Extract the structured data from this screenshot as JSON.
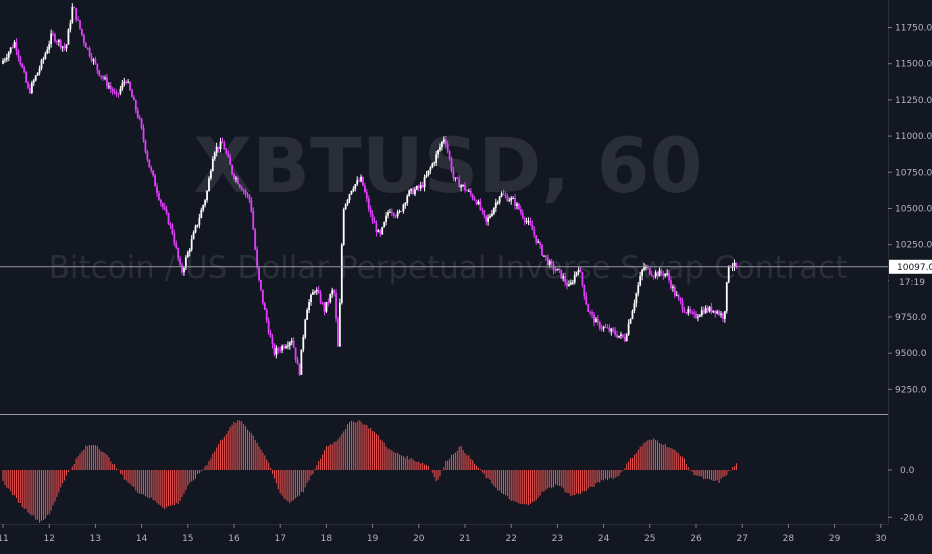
{
  "watermark": {
    "symbol": "XBTUSD, 60",
    "description": "Bitcoin / US Dollar Perpetual Inverse Swap Contract"
  },
  "price_tag": {
    "value": "10097.0",
    "countdown": "17:19",
    "bg_color": "#ffffff",
    "line_color": "#9598a1"
  },
  "colors": {
    "background": "#131722",
    "candle_up": "#ffffff",
    "candle_down": "#e040fb",
    "histogram": "#ef5350",
    "axis_text": "#b2b5be",
    "separator": "#9598a1"
  },
  "chart_data": [
    {
      "type": "candlestick",
      "pane": "price",
      "symbol": "XBTUSD",
      "interval": "60",
      "x_axis": {
        "unit": "day",
        "range": [
          11,
          30
        ],
        "tick_labels": [
          "11",
          "12",
          "13",
          "14",
          "15",
          "16",
          "17",
          "18",
          "19",
          "20",
          "21",
          "22",
          "23",
          "24",
          "25",
          "26",
          "27",
          "28",
          "29",
          "30"
        ]
      },
      "y_axis": {
        "range": [
          9080,
          11940
        ],
        "position": "right",
        "tick_labels": [
          "9250.0",
          "9500.0",
          "9750.0",
          "10000.0",
          "10250.0",
          "10500.0",
          "10750.0",
          "11000.0",
          "11250.0",
          "11500.0",
          "11750.0"
        ],
        "tick_values": [
          9250,
          9500,
          9750,
          10000,
          10250,
          10500,
          10750,
          11000,
          11250,
          11500,
          11750
        ]
      },
      "grid": false,
      "last_price": 10097.0,
      "anchors": [
        [
          11.0,
          11500
        ],
        [
          11.3,
          11650
        ],
        [
          11.6,
          11300
        ],
        [
          11.9,
          11520
        ],
        [
          12.1,
          11700
        ],
        [
          12.4,
          11600
        ],
        [
          12.55,
          11900
        ],
        [
          12.8,
          11650
        ],
        [
          13.1,
          11450
        ],
        [
          13.5,
          11270
        ],
        [
          13.7,
          11400
        ],
        [
          14.0,
          11100
        ],
        [
          14.2,
          10800
        ],
        [
          14.45,
          10550
        ],
        [
          14.7,
          10350
        ],
        [
          14.9,
          10050
        ],
        [
          15.2,
          10350
        ],
        [
          15.45,
          10600
        ],
        [
          15.6,
          10900
        ],
        [
          15.8,
          10950
        ],
        [
          16.0,
          10750
        ],
        [
          16.2,
          10650
        ],
        [
          16.4,
          10550
        ],
        [
          16.55,
          10050
        ],
        [
          16.7,
          9800
        ],
        [
          16.9,
          9500
        ],
        [
          17.1,
          9550
        ],
        [
          17.3,
          9600
        ],
        [
          17.45,
          9350
        ],
        [
          17.6,
          9800
        ],
        [
          17.8,
          9950
        ],
        [
          18.0,
          9800
        ],
        [
          18.2,
          9950
        ],
        [
          18.3,
          9500
        ],
        [
          18.4,
          10500
        ],
        [
          18.6,
          10650
        ],
        [
          18.8,
          10700
        ],
        [
          19.0,
          10450
        ],
        [
          19.2,
          10300
        ],
        [
          19.4,
          10500
        ],
        [
          19.6,
          10450
        ],
        [
          19.8,
          10600
        ],
        [
          20.1,
          10650
        ],
        [
          20.4,
          10850
        ],
        [
          20.6,
          11000
        ],
        [
          20.8,
          10700
        ],
        [
          21.0,
          10650
        ],
        [
          21.3,
          10550
        ],
        [
          21.5,
          10400
        ],
        [
          21.8,
          10600
        ],
        [
          22.1,
          10550
        ],
        [
          22.3,
          10450
        ],
        [
          22.5,
          10350
        ],
        [
          22.7,
          10200
        ],
        [
          22.9,
          10100
        ],
        [
          23.1,
          10050
        ],
        [
          23.3,
          9950
        ],
        [
          23.5,
          10100
        ],
        [
          23.7,
          9800
        ],
        [
          23.9,
          9700
        ],
        [
          24.2,
          9650
        ],
        [
          24.5,
          9600
        ],
        [
          24.7,
          9850
        ],
        [
          24.9,
          10100
        ],
        [
          25.1,
          10050
        ],
        [
          25.4,
          10050
        ],
        [
          25.6,
          9900
        ],
        [
          25.8,
          9800
        ],
        [
          26.0,
          9750
        ],
        [
          26.2,
          9800
        ],
        [
          26.45,
          9800
        ],
        [
          26.65,
          9750
        ],
        [
          26.75,
          10120
        ],
        [
          26.9,
          10097
        ]
      ]
    },
    {
      "type": "bar",
      "pane": "oscillator",
      "y_axis": {
        "range": [
          -22,
          22
        ],
        "position": "right",
        "tick_labels": [
          "0.0",
          "-20.0"
        ],
        "tick_values": [
          0,
          -20
        ]
      },
      "anchors": [
        [
          11.0,
          -5
        ],
        [
          11.4,
          -15
        ],
        [
          11.8,
          -22
        ],
        [
          12.0,
          -19
        ],
        [
          12.3,
          -5
        ],
        [
          12.6,
          5
        ],
        [
          12.8,
          10
        ],
        [
          13.0,
          11
        ],
        [
          13.3,
          5
        ],
        [
          13.6,
          -3
        ],
        [
          13.9,
          -9
        ],
        [
          14.2,
          -12
        ],
        [
          14.5,
          -16
        ],
        [
          14.8,
          -14
        ],
        [
          15.0,
          -7
        ],
        [
          15.4,
          2
        ],
        [
          15.7,
          12
        ],
        [
          16.0,
          20
        ],
        [
          16.15,
          21
        ],
        [
          16.4,
          15
        ],
        [
          16.7,
          5
        ],
        [
          17.0,
          -10
        ],
        [
          17.2,
          -14
        ],
        [
          17.5,
          -9
        ],
        [
          17.8,
          2
        ],
        [
          18.0,
          10
        ],
        [
          18.2,
          12
        ],
        [
          18.5,
          20
        ],
        [
          18.7,
          21
        ],
        [
          19.0,
          17
        ],
        [
          19.4,
          8
        ],
        [
          19.8,
          5
        ],
        [
          20.2,
          2
        ],
        [
          20.4,
          -5
        ],
        [
          20.6,
          4
        ],
        [
          20.9,
          10
        ],
        [
          21.2,
          3
        ],
        [
          21.5,
          -4
        ],
        [
          21.8,
          -10
        ],
        [
          22.1,
          -14
        ],
        [
          22.4,
          -15
        ],
        [
          22.7,
          -9
        ],
        [
          23.0,
          -6
        ],
        [
          23.3,
          -11
        ],
        [
          23.6,
          -9
        ],
        [
          24.0,
          -4
        ],
        [
          24.3,
          -3
        ],
        [
          24.6,
          5
        ],
        [
          24.9,
          12
        ],
        [
          25.1,
          13
        ],
        [
          25.4,
          10
        ],
        [
          25.7,
          6
        ],
        [
          25.9,
          -1
        ],
        [
          26.2,
          -4
        ],
        [
          26.5,
          -5
        ],
        [
          26.7,
          -1
        ],
        [
          26.9,
          3
        ]
      ]
    }
  ]
}
